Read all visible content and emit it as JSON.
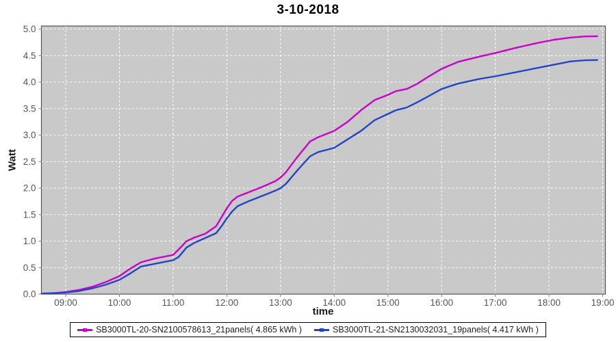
{
  "title": "3-10-2018",
  "colors": {
    "plot_background": "#c9c9c9",
    "grid": "#ffffff",
    "plot_border": "#545454",
    "tick_label": "#555555",
    "axis_label": "#1a1a1a",
    "series_magenta": "#cc00cc",
    "series_blue": "#2244cc"
  },
  "chart_data": {
    "type": "line",
    "title": "3-10-2018",
    "xlabel": "time",
    "ylabel": "Watt",
    "grid": true,
    "legend_position": "bottom",
    "xlim": [
      8.547,
      19.05
    ],
    "ylim": [
      0,
      5.0
    ],
    "y_tick_step": 0.5,
    "y_tick_labels": [
      "0.0",
      "0.5",
      "1.0",
      "1.5",
      "2.0",
      "2.5",
      "3.0",
      "3.5",
      "4.0",
      "4.5",
      "5.0"
    ],
    "x_tick_hours": [
      9,
      10,
      11,
      12,
      13,
      14,
      15,
      16,
      17,
      18,
      19
    ],
    "x_tick_labels": [
      "09:00",
      "10:00",
      "11:00",
      "12:00",
      "13:00",
      "14:00",
      "15:00",
      "16:00",
      "17:00",
      "18:00",
      "19:00"
    ],
    "x": [
      8.55,
      8.8,
      9.0,
      9.25,
      9.5,
      9.75,
      10.0,
      10.2,
      10.4,
      10.65,
      10.85,
      11.0,
      11.1,
      11.25,
      11.4,
      11.6,
      11.8,
      11.9,
      12.0,
      12.1,
      12.2,
      12.4,
      12.7,
      12.9,
      13.0,
      13.1,
      13.3,
      13.55,
      13.7,
      14.0,
      14.25,
      14.5,
      14.75,
      15.0,
      15.15,
      15.35,
      15.55,
      15.75,
      16.0,
      16.3,
      16.7,
      17.0,
      17.4,
      17.8,
      18.1,
      18.4,
      18.65,
      18.9
    ],
    "series": [
      {
        "name": "SB3000TL-20-SN2100578613_21panels( 4.865 kWh )",
        "color": "#cc00cc",
        "final_kwh": 4.865,
        "values": [
          0.01,
          0.02,
          0.04,
          0.08,
          0.14,
          0.23,
          0.34,
          0.48,
          0.6,
          0.67,
          0.71,
          0.74,
          0.84,
          1.0,
          1.07,
          1.14,
          1.28,
          1.45,
          1.62,
          1.76,
          1.84,
          1.92,
          2.04,
          2.13,
          2.2,
          2.3,
          2.57,
          2.88,
          2.96,
          3.08,
          3.25,
          3.47,
          3.66,
          3.76,
          3.83,
          3.87,
          3.97,
          4.1,
          4.25,
          4.38,
          4.48,
          4.55,
          4.65,
          4.74,
          4.8,
          4.84,
          4.86,
          4.865
        ]
      },
      {
        "name": "SB3000TL-21-SN2130032031_19panels( 4.417 kWh )",
        "color": "#2244cc",
        "final_kwh": 4.417,
        "values": [
          0.01,
          0.02,
          0.03,
          0.06,
          0.11,
          0.18,
          0.27,
          0.39,
          0.52,
          0.57,
          0.61,
          0.64,
          0.7,
          0.88,
          0.97,
          1.06,
          1.15,
          1.28,
          1.43,
          1.56,
          1.66,
          1.75,
          1.87,
          1.95,
          2.0,
          2.08,
          2.32,
          2.6,
          2.68,
          2.76,
          2.92,
          3.08,
          3.28,
          3.4,
          3.47,
          3.52,
          3.62,
          3.73,
          3.87,
          3.97,
          4.06,
          4.11,
          4.19,
          4.27,
          4.33,
          4.39,
          4.41,
          4.417
        ]
      }
    ]
  }
}
